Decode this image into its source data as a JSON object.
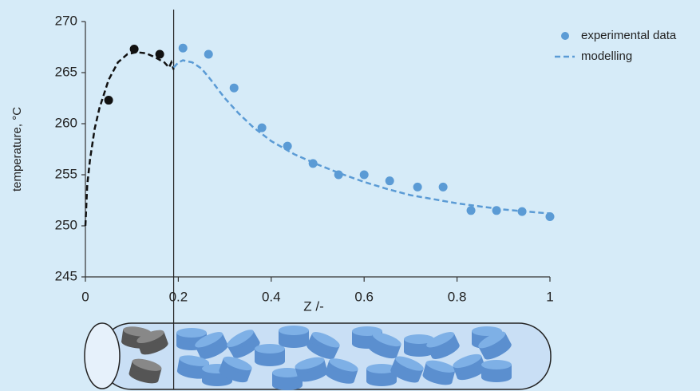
{
  "chart_data": {
    "type": "line",
    "xlabel": "Z /-",
    "ylabel": "temperature, °C",
    "xlim": [
      0,
      1
    ],
    "ylim": [
      245,
      270
    ],
    "xticks": [
      0,
      0.2,
      0.4,
      0.6,
      0.8,
      1
    ],
    "yticks": [
      245,
      250,
      255,
      260,
      265,
      270
    ],
    "divider_x": 0.19,
    "legend": "upper right",
    "series": [
      {
        "name": "experimental data",
        "kind": "scatter",
        "color": "#5b9bd5",
        "x": [
          0.05,
          0.105,
          0.16,
          0.21,
          0.265,
          0.32,
          0.38,
          0.435,
          0.49,
          0.545,
          0.6,
          0.655,
          0.715,
          0.77,
          0.83,
          0.885,
          0.94,
          1.0
        ],
        "values": [
          262.3,
          267.3,
          266.8,
          267.4,
          266.8,
          263.5,
          259.6,
          257.8,
          256.1,
          255.0,
          255.0,
          254.4,
          253.8,
          253.8,
          251.5,
          251.5,
          251.4,
          250.9
        ],
        "point_colors": [
          "#111111",
          "#111111",
          "#111111",
          "#5b9bd5",
          "#5b9bd5",
          "#5b9bd5",
          "#5b9bd5",
          "#5b9bd5",
          "#5b9bd5",
          "#5b9bd5",
          "#5b9bd5",
          "#5b9bd5",
          "#5b9bd5",
          "#5b9bd5",
          "#5b9bd5",
          "#5b9bd5",
          "#5b9bd5",
          "#5b9bd5"
        ]
      },
      {
        "name": "modelling",
        "kind": "dashed",
        "color": "#5b9bd5",
        "piece_colors": [
          "#111111",
          "#5b9bd5"
        ],
        "x": [
          0,
          0.004,
          0.01,
          0.02,
          0.03,
          0.05,
          0.07,
          0.09,
          0.11,
          0.13,
          0.15,
          0.17,
          0.18,
          0.185,
          0.19,
          null,
          0.19,
          0.2,
          0.21,
          0.23,
          0.25,
          0.27,
          0.3,
          0.33,
          0.36,
          0.4,
          0.45,
          0.5,
          0.55,
          0.6,
          0.65,
          0.7,
          0.75,
          0.8,
          0.85,
          0.9,
          0.95,
          1.0
        ],
        "values": [
          250,
          254,
          256.5,
          259.5,
          261.5,
          264.3,
          266,
          266.8,
          267,
          266.9,
          266.5,
          266,
          265.5,
          266,
          265.3,
          null,
          265.5,
          266,
          266.2,
          266,
          265.4,
          264.3,
          262.5,
          261,
          259.7,
          258.3,
          257,
          256,
          255.1,
          254.3,
          253.6,
          253,
          252.6,
          252.2,
          251.9,
          251.6,
          251.4,
          251.2
        ]
      }
    ]
  }
}
